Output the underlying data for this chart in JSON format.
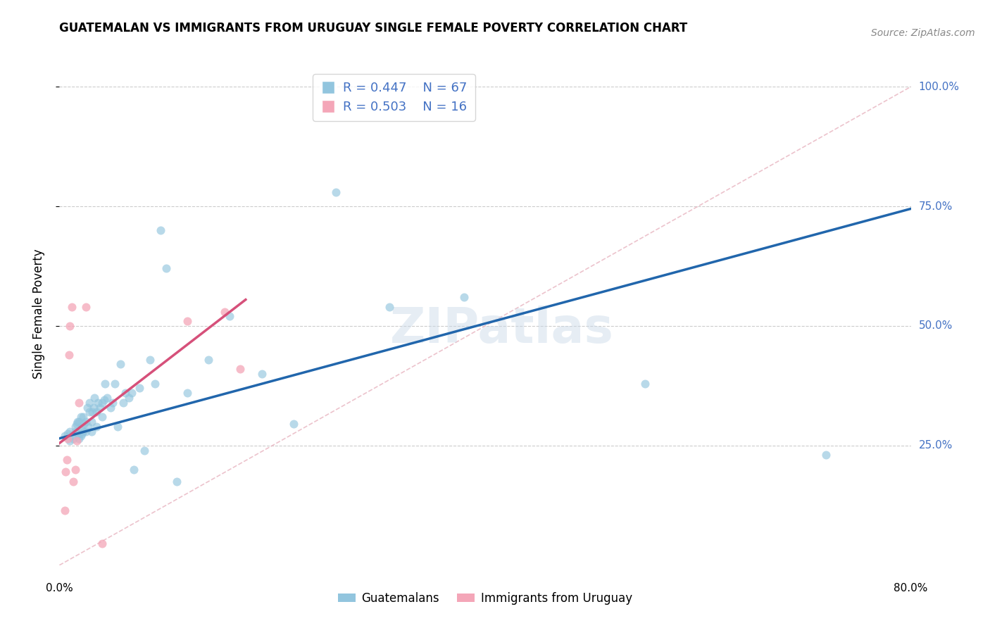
{
  "title": "GUATEMALAN VS IMMIGRANTS FROM URUGUAY SINGLE FEMALE POVERTY CORRELATION CHART",
  "source": "Source: ZipAtlas.com",
  "ylabel": "Single Female Poverty",
  "ytick_labels": [
    "25.0%",
    "50.0%",
    "75.0%",
    "100.0%"
  ],
  "ytick_values": [
    0.25,
    0.5,
    0.75,
    1.0
  ],
  "xmin": 0.0,
  "xmax": 0.8,
  "ymin": 0.0,
  "ymax": 1.05,
  "legend_r1": "R = 0.447",
  "legend_n1": "N = 67",
  "legend_r2": "R = 0.503",
  "legend_n2": "N = 16",
  "legend_label1": "Guatemalans",
  "legend_label2": "Immigrants from Uruguay",
  "color_blue": "#92c5de",
  "color_pink": "#f4a6b8",
  "color_line_blue": "#2166ac",
  "color_line_pink": "#d6507a",
  "color_diag": "#e8b4c0",
  "blue_scatter_x": [
    0.005,
    0.008,
    0.01,
    0.01,
    0.012,
    0.013,
    0.015,
    0.015,
    0.016,
    0.017,
    0.018,
    0.018,
    0.018,
    0.02,
    0.02,
    0.02,
    0.021,
    0.022,
    0.022,
    0.023,
    0.025,
    0.025,
    0.026,
    0.027,
    0.028,
    0.028,
    0.03,
    0.03,
    0.031,
    0.032,
    0.033,
    0.035,
    0.035,
    0.036,
    0.038,
    0.04,
    0.04,
    0.042,
    0.043,
    0.045,
    0.048,
    0.05,
    0.052,
    0.055,
    0.057,
    0.06,
    0.062,
    0.065,
    0.068,
    0.07,
    0.075,
    0.08,
    0.085,
    0.09,
    0.095,
    0.1,
    0.11,
    0.12,
    0.14,
    0.16,
    0.19,
    0.22,
    0.26,
    0.31,
    0.38,
    0.55,
    0.72
  ],
  "blue_scatter_y": [
    0.27,
    0.275,
    0.26,
    0.28,
    0.27,
    0.265,
    0.28,
    0.29,
    0.295,
    0.3,
    0.265,
    0.275,
    0.3,
    0.27,
    0.285,
    0.31,
    0.275,
    0.28,
    0.31,
    0.295,
    0.28,
    0.3,
    0.33,
    0.29,
    0.32,
    0.34,
    0.28,
    0.3,
    0.32,
    0.33,
    0.35,
    0.29,
    0.32,
    0.34,
    0.33,
    0.31,
    0.34,
    0.345,
    0.38,
    0.35,
    0.33,
    0.34,
    0.38,
    0.29,
    0.42,
    0.34,
    0.36,
    0.35,
    0.36,
    0.2,
    0.37,
    0.24,
    0.43,
    0.38,
    0.7,
    0.62,
    0.175,
    0.36,
    0.43,
    0.52,
    0.4,
    0.295,
    0.78,
    0.54,
    0.56,
    0.38,
    0.23
  ],
  "pink_scatter_x": [
    0.005,
    0.006,
    0.007,
    0.008,
    0.009,
    0.01,
    0.012,
    0.013,
    0.015,
    0.016,
    0.018,
    0.025,
    0.04,
    0.12,
    0.155,
    0.17
  ],
  "pink_scatter_y": [
    0.115,
    0.195,
    0.22,
    0.265,
    0.44,
    0.5,
    0.54,
    0.175,
    0.2,
    0.26,
    0.34,
    0.54,
    0.045,
    0.51,
    0.53,
    0.41
  ],
  "blue_line_x": [
    0.0,
    0.8
  ],
  "blue_line_y": [
    0.265,
    0.745
  ],
  "pink_line_x": [
    0.0,
    0.175
  ],
  "pink_line_y": [
    0.255,
    0.555
  ],
  "diag_line_x": [
    0.0,
    0.8
  ],
  "diag_line_y": [
    0.0,
    1.0
  ]
}
